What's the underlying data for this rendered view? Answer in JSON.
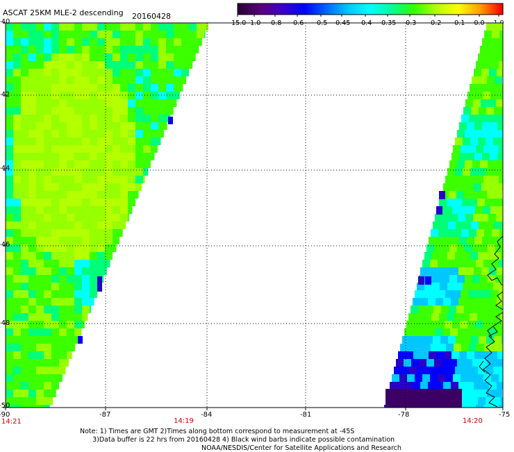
{
  "title": "ASCAT 25KM MLE-2 descending",
  "date": "20160428",
  "colorbar": {
    "labels": [
      "-15.0",
      "-1.0",
      "-0.8",
      "-0.6",
      "-0.5",
      "-0.45",
      "-0.4",
      "-0.35",
      "-0.3",
      "-0.2",
      "-0.1",
      "0.0",
      "1.0"
    ],
    "colors": [
      "#2a0036",
      "#5a0078",
      "#3c00c8",
      "#0000ff",
      "#0064ff",
      "#00c8ff",
      "#00ffff",
      "#00ff96",
      "#32ff00",
      "#b4ff00",
      "#ffff00",
      "#ffa000",
      "#ff0000"
    ]
  },
  "axes": {
    "lat_labels": [
      "-40",
      "-42",
      "-44",
      "-46",
      "-48",
      "-50"
    ],
    "lon_labels": [
      "-90",
      "-87",
      "-84",
      "-81",
      "-78",
      "-75"
    ]
  },
  "times": {
    "left": "14:21",
    "mid": "14:19",
    "right": "14:20"
  },
  "note_lines": [
    "Note: 1) Times are GMT 2)Times along bottom correspond to measurement at -45S",
    "      3)Data buffer is 22 hrs from 20160428 4) Black wind barbs indicate possible contamination"
  ],
  "credit": "NOAA/NESDIS/Center for Satellite Applications and Research",
  "palette": {
    "green": "#3cff00",
    "lightgreen": "#96ff00",
    "yellowgreen": "#b4ff00",
    "seagreen": "#00ff78",
    "cyan": "#00ffff",
    "lightblue": "#00c8ff",
    "blue": "#0000ff",
    "navy": "#2800c8",
    "purple": "#3c0064",
    "time_red": "#cc0000"
  }
}
